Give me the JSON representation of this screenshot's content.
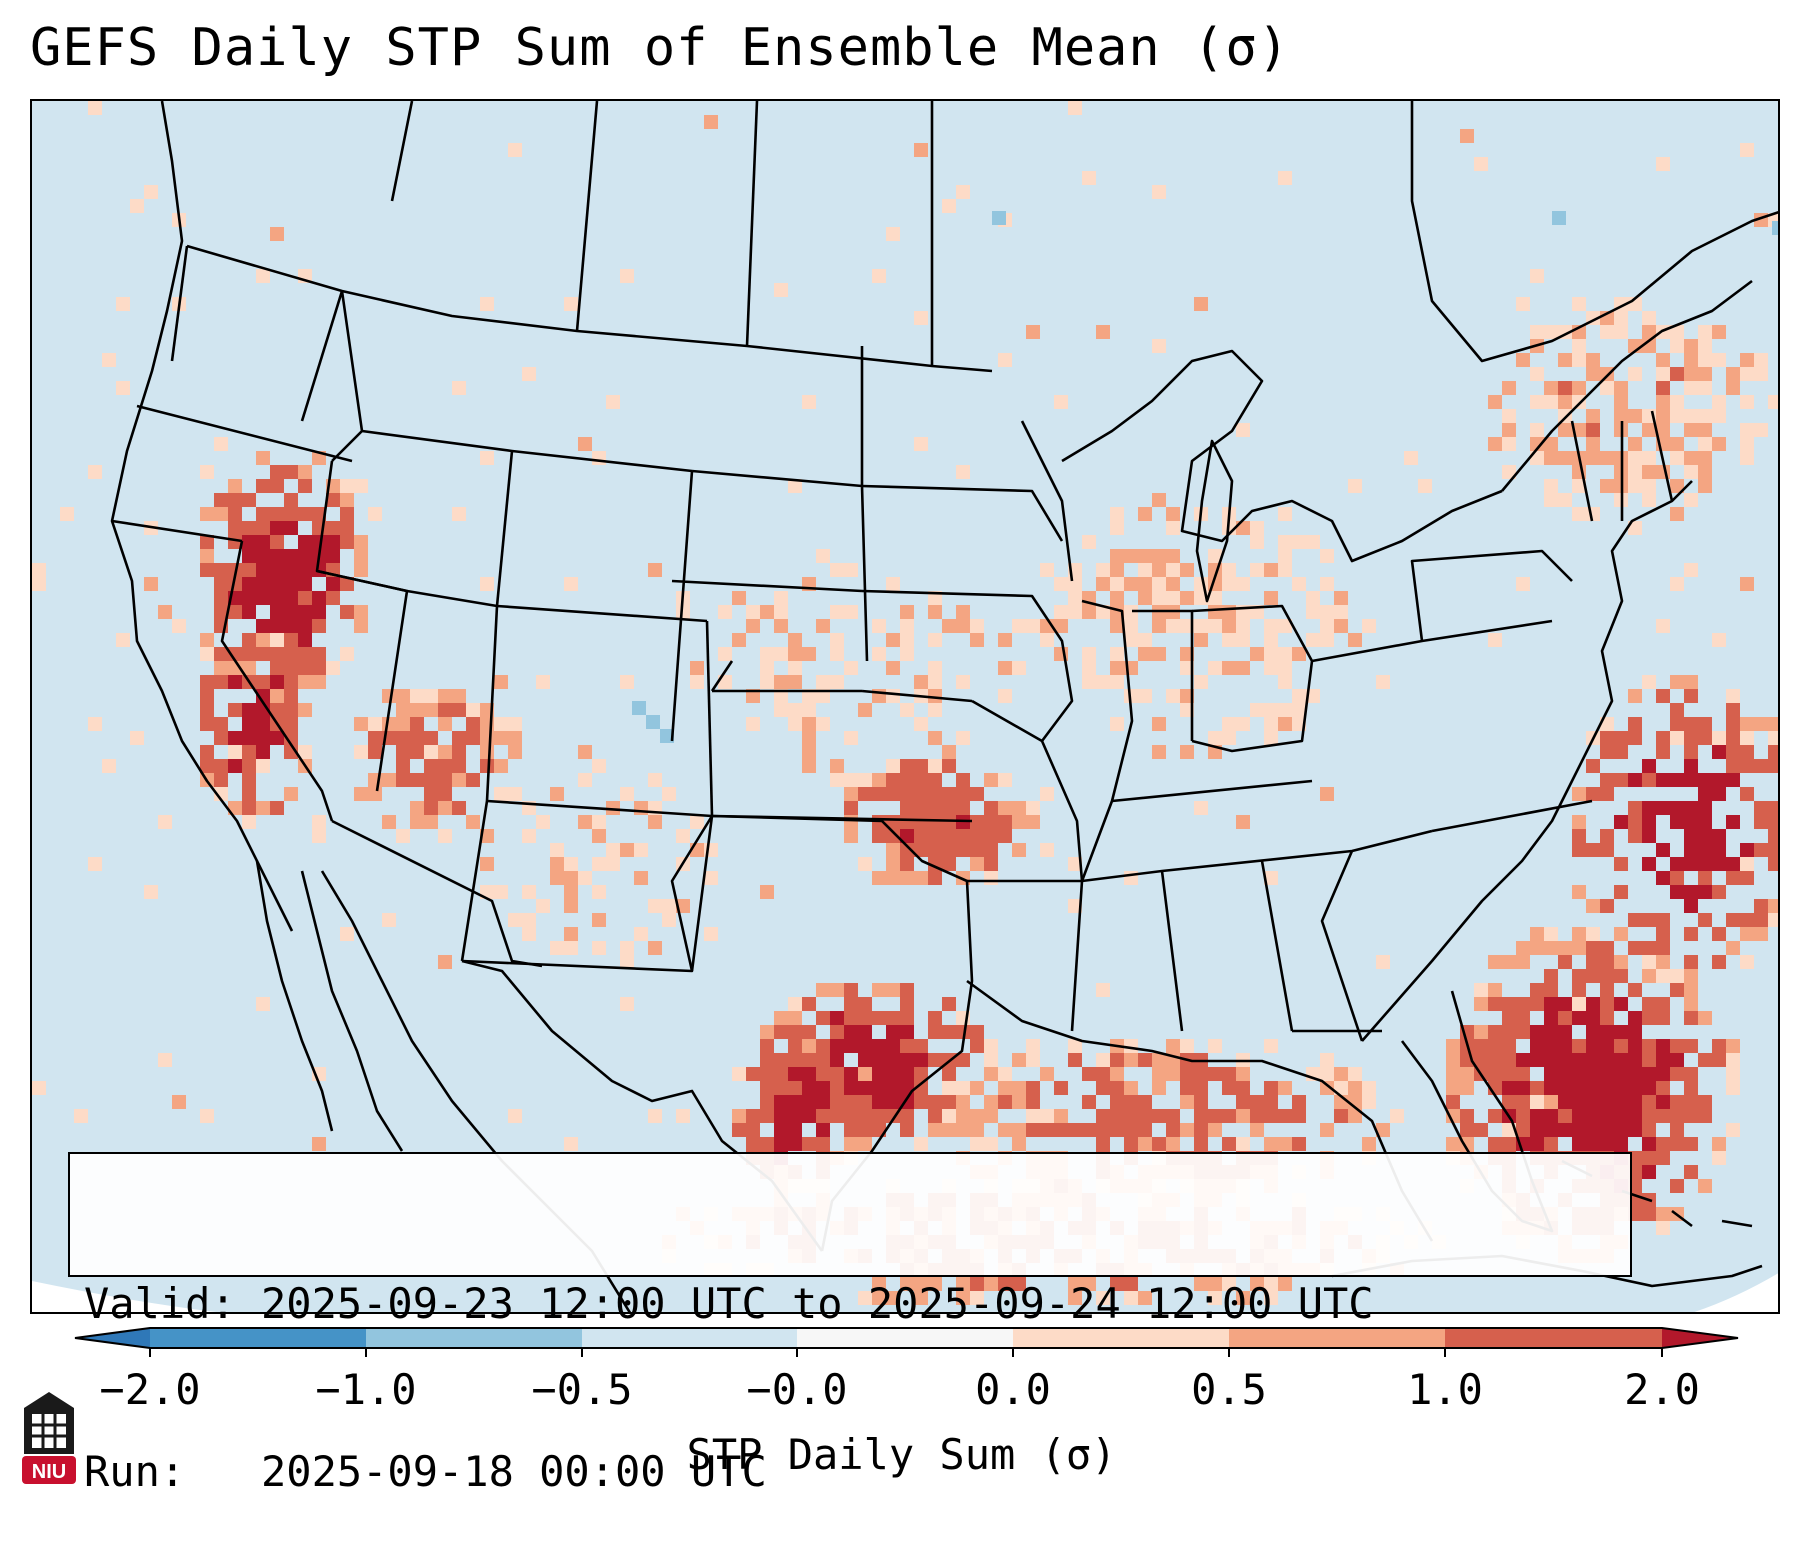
{
  "title": "GEFS Daily STP Sum of Ensemble Mean (σ)",
  "info": {
    "valid_line": "Valid: 2025-09-23 12:00 UTC to 2025-09-24 12:00 UTC",
    "run_line": "Run:   2025-09-18 00:00 UTC"
  },
  "colorbar": {
    "label": "STP Daily Sum (σ)",
    "tick_labels": [
      "−2.0",
      "−1.0",
      "−0.5",
      "−0.0",
      "0.0",
      "0.5",
      "1.0",
      "2.0"
    ],
    "bins": [
      {
        "from": -3.0,
        "to": -2.0,
        "color": "#2f78b8"
      },
      {
        "from": -2.0,
        "to": -1.0,
        "color": "#4593c7"
      },
      {
        "from": -1.0,
        "to": -0.5,
        "color": "#92c5de"
      },
      {
        "from": -0.5,
        "to": -0.0,
        "color": "#d1e5f0"
      },
      {
        "from": -0.0,
        "to": 0.0,
        "color": "#f7f7f7"
      },
      {
        "from": 0.0,
        "to": 0.5,
        "color": "#fddbc7"
      },
      {
        "from": 0.5,
        "to": 1.0,
        "color": "#f4a582"
      },
      {
        "from": 1.0,
        "to": 2.0,
        "color": "#d6604d"
      },
      {
        "from": 2.0,
        "to": 3.0,
        "color": "#b2182b"
      }
    ]
  },
  "map": {
    "background_color": "#d1e5f0",
    "boundary_color": "#000000",
    "field_regions": [
      {
        "name": "california-nevada",
        "level": 2.0
      },
      {
        "name": "arizona-utah",
        "level": 1.0
      },
      {
        "name": "oklahoma-ring",
        "level": 1.5
      },
      {
        "name": "texas-gulf-coast",
        "level": 2.0
      },
      {
        "name": "florida-atlantic",
        "level": 2.0
      },
      {
        "name": "gulf-of-mexico",
        "level": 1.0
      },
      {
        "name": "great-lakes-ohio-valley",
        "level": 0.3
      },
      {
        "name": "new-england",
        "level": 0.5
      },
      {
        "name": "central-plains",
        "level": 0.3
      }
    ]
  },
  "logo": {
    "text": "NIU",
    "color": "#c8102e"
  }
}
